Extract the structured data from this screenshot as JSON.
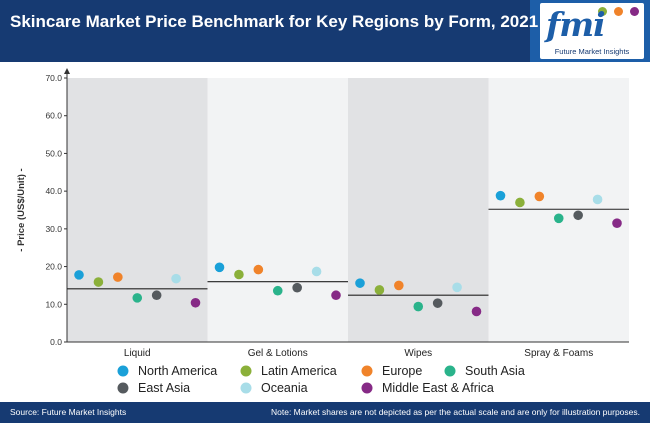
{
  "header": {
    "title": "Skincare Market Price Benchmark for Key Regions by Form, 2021",
    "logo_mark": "fmi",
    "logo_text": "Future Market Insights"
  },
  "footer": {
    "source": "Source: Future Market Insights",
    "note": "Note: Market shares are not depicted as per the actual scale and are only for illustration purposes."
  },
  "chart_data": {
    "type": "scatter",
    "title": "Skincare Market Price Benchmark for Key Regions by Form, 2021",
    "ylabel": "- Price (US$/Unit) -",
    "ylim": [
      0,
      70
    ],
    "yticks": [
      "0.0",
      "10.0",
      "20.0",
      "30.0",
      "40.0",
      "50.0",
      "60.0",
      "70.0"
    ],
    "categories": [
      "Liquid",
      "Gel & Lotions",
      "Wipes",
      "Spray & Foams"
    ],
    "series": [
      {
        "name": "North America",
        "color": "#1aa0d8",
        "values": [
          17.8,
          19.8,
          15.6,
          38.8
        ]
      },
      {
        "name": "Latin America",
        "color": "#8bb03a",
        "values": [
          15.9,
          17.9,
          13.8,
          37.0
        ]
      },
      {
        "name": "Europe",
        "color": "#f0832a",
        "values": [
          17.2,
          19.2,
          15.0,
          38.6
        ]
      },
      {
        "name": "South Asia",
        "color": "#2ab38b",
        "values": [
          11.7,
          13.6,
          9.4,
          32.8
        ]
      },
      {
        "name": "East Asia",
        "color": "#555a5e",
        "values": [
          12.4,
          14.4,
          10.3,
          33.6
        ]
      },
      {
        "name": "Oceania",
        "color": "#a8dde8",
        "values": [
          16.8,
          18.7,
          14.5,
          37.8
        ]
      },
      {
        "name": "Middle East & Africa",
        "color": "#862a86",
        "values": [
          10.4,
          12.4,
          8.1,
          31.5
        ]
      }
    ],
    "averages": [
      14.1,
      16.0,
      12.4,
      35.2
    ],
    "band_colors": [
      "#e1e2e4",
      "#f2f3f4"
    ],
    "legend_placement": "bottom",
    "grid": false
  }
}
